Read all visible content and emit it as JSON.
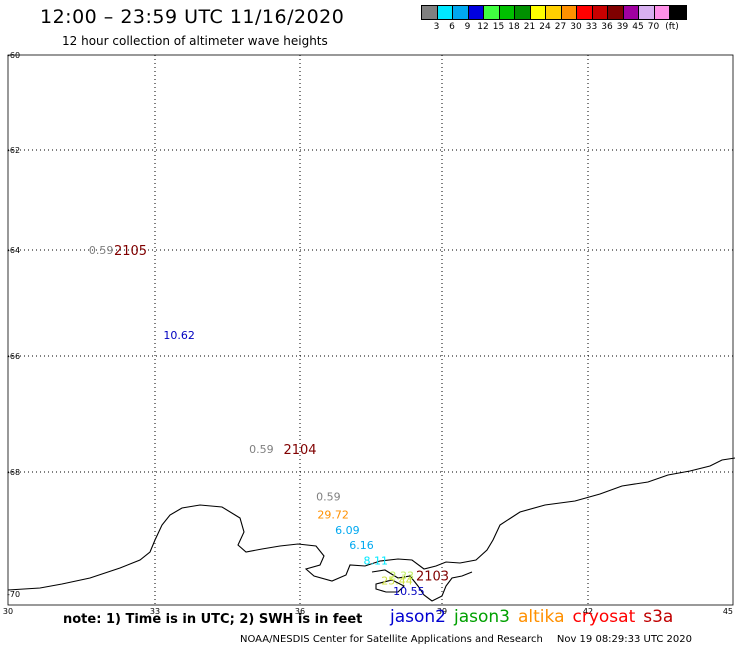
{
  "header": {
    "title": "12:00 – 23:59 UTC 11/16/2020",
    "subtitle": "12 hour collection of altimeter wave heights"
  },
  "color_scale": {
    "colors": [
      "#808080",
      "#00e8ff",
      "#00a8f0",
      "#0000e0",
      "#40ff40",
      "#00c000",
      "#009000",
      "#ffff00",
      "#ffd000",
      "#ff9000",
      "#ff0000",
      "#c80000",
      "#800000",
      "#a000a0",
      "#d8b0f0",
      "#ff90e8",
      "#000000"
    ],
    "labels": [
      "3",
      "6",
      "9",
      "12",
      "15",
      "18",
      "21",
      "24",
      "27",
      "30",
      "33",
      "36",
      "39",
      "45",
      "70"
    ],
    "unit": "(ft)"
  },
  "axes": {
    "lat_labels": [
      "-60",
      "-62",
      "-64",
      "-66",
      "-68",
      "-70"
    ],
    "lon_labels": [
      "30",
      "33",
      "36",
      "39",
      "42",
      "45"
    ]
  },
  "observations": [
    {
      "value": "0.59",
      "color": "#808080",
      "lon": 31.9,
      "lat": -64.0
    },
    {
      "value": "10.62",
      "color": "#0000c0",
      "lon": 33.5,
      "lat": -65.6
    },
    {
      "value": "0.59",
      "color": "#808080",
      "lon": 35.2,
      "lat": -67.6
    },
    {
      "value": "0.59",
      "color": "#808080",
      "lon": 36.6,
      "lat": -68.4
    },
    {
      "value": "29.72",
      "color": "#ff9000",
      "lon": 36.7,
      "lat": -68.7
    },
    {
      "value": "6.09",
      "color": "#00a8f0",
      "lon": 37.0,
      "lat": -68.95
    },
    {
      "value": "6.16",
      "color": "#00a8f0",
      "lon": 37.3,
      "lat": -69.2
    },
    {
      "value": "8.11",
      "color": "#00e8ff",
      "lon": 37.6,
      "lat": -69.45
    },
    {
      "value": "2.33",
      "color": "#c0f060",
      "lon": 38.15,
      "lat": -69.7
    },
    {
      "value": "25.44",
      "color": "#d0e040",
      "lon": 38.05,
      "lat": -69.78
    },
    {
      "value": "10.55",
      "color": "#0000c0",
      "lon": 38.3,
      "lat": -69.95
    }
  ],
  "pass_labels": [
    {
      "id": "2105",
      "color": "#800000",
      "lon": 32.5,
      "lat": -64.0
    },
    {
      "id": "2104",
      "color": "#800000",
      "lon": 36.0,
      "lat": -67.6
    },
    {
      "id": "2103",
      "color": "#800000",
      "lon": 38.8,
      "lat": -69.7
    }
  ],
  "footer": {
    "note": "note: 1) Time is in UTC; 2) SWH is in feet",
    "satellites": [
      {
        "name": "jason2",
        "color": "#0000d0"
      },
      {
        "name": "jason3",
        "color": "#00a000"
      },
      {
        "name": "altika",
        "color": "#ff9000"
      },
      {
        "name": "cryosat",
        "color": "#ff0000"
      },
      {
        "name": "s3a",
        "color": "#c00000"
      }
    ],
    "credit": "NOAA/NESDIS Center for Satellite Applications and Research",
    "timestamp": "Nov 19 08:29:33 UTC 2020"
  }
}
